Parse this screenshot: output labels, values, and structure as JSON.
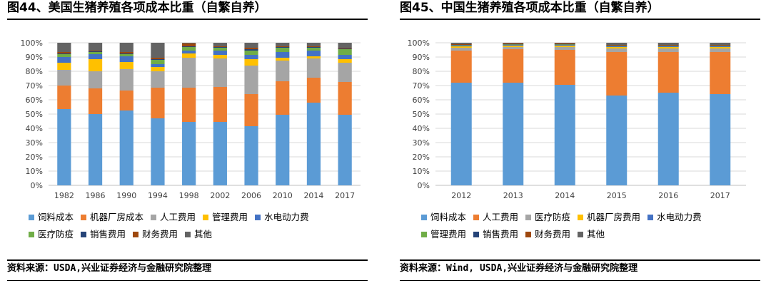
{
  "left": {
    "title": "图44、美国生猪养殖各项成本比重（自繁自养）",
    "source": "资料来源：USDA,兴业证券经济与金融研究院整理",
    "chart_data": {
      "type": "bar",
      "stacked": true,
      "categories": [
        "1982",
        "1986",
        "1990",
        "1994",
        "1998",
        "2002",
        "2006",
        "2010",
        "2014",
        "2017"
      ],
      "ylim": [
        0,
        100
      ],
      "yticks": [
        "0%",
        "10%",
        "20%",
        "30%",
        "40%",
        "50%",
        "60%",
        "70%",
        "80%",
        "90%",
        "100%"
      ],
      "grid": true,
      "legend_position": "bottom",
      "series": [
        {
          "name": "饲料成本",
          "color": "#5B9BD5",
          "values": [
            53.5,
            50,
            52.5,
            47,
            44.5,
            44.5,
            41.5,
            49.5,
            58,
            49.5
          ]
        },
        {
          "name": "机器厂房成本",
          "color": "#ED7D31",
          "values": [
            16.5,
            18,
            14,
            21.5,
            24,
            24.5,
            22.5,
            23.5,
            17.5,
            23
          ]
        },
        {
          "name": "人工费用",
          "color": "#A5A5A5",
          "values": [
            11,
            12,
            15,
            11.5,
            21,
            20,
            20,
            14.5,
            13.5,
            13.5
          ]
        },
        {
          "name": "管理费用",
          "color": "#FFC000",
          "values": [
            5,
            8.5,
            5,
            3,
            3,
            2.5,
            4.5,
            2,
            1.5,
            2.5
          ]
        },
        {
          "name": "水电动力费",
          "color": "#4472C4",
          "values": [
            4,
            3.5,
            4,
            2,
            2,
            3,
            3,
            4,
            4,
            3
          ]
        },
        {
          "name": "医疗防疫",
          "color": "#70AD47",
          "values": [
            2,
            1.5,
            1.5,
            3,
            2.5,
            2,
            3,
            3,
            2,
            4
          ]
        },
        {
          "name": "销售费用",
          "color": "#264478",
          "values": [
            0.5,
            0.5,
            0.5,
            0.5,
            0.5,
            0.5,
            1,
            0.5,
            0.5,
            0.5
          ]
        },
        {
          "name": "财务费用",
          "color": "#9E480E",
          "values": [
            1,
            0.5,
            1,
            1,
            2,
            0.5,
            1,
            0.5,
            0.5,
            0.5
          ]
        },
        {
          "name": "其他",
          "color": "#636363",
          "values": [
            6.5,
            5.5,
            6.5,
            10.5,
            0.5,
            2.5,
            3.5,
            2.5,
            2.5,
            3.5
          ]
        }
      ]
    }
  },
  "right": {
    "title": "图45、中国生猪养殖各项成本比重（自繁自养）",
    "source": "资料来源：Wind, USDA,兴业证券经济与金融研究院整理",
    "chart_data": {
      "type": "bar",
      "stacked": true,
      "categories": [
        "2012",
        "2013",
        "2014",
        "2015",
        "2016",
        "2017"
      ],
      "ylim": [
        0,
        100
      ],
      "yticks": [
        "0%",
        "10%",
        "20%",
        "30%",
        "40%",
        "50%",
        "60%",
        "70%",
        "80%",
        "90%",
        "100%"
      ],
      "grid": true,
      "legend_position": "bottom",
      "series": [
        {
          "name": "饲料成本",
          "color": "#5B9BD5",
          "values": [
            72,
            72,
            70.5,
            63,
            65,
            64
          ]
        },
        {
          "name": "人工费用",
          "color": "#ED7D31",
          "values": [
            22.5,
            23.5,
            24.5,
            30.5,
            28.5,
            29.5
          ]
        },
        {
          "name": "医疗防疫",
          "color": "#A5A5A5",
          "values": [
            2,
            1.5,
            2,
            2.5,
            2.5,
            2.5
          ]
        },
        {
          "name": "机器厂房费用",
          "color": "#FFC000",
          "values": [
            1,
            1,
            1,
            1,
            1,
            1
          ]
        },
        {
          "name": "水电动力费",
          "color": "#4472C4",
          "values": [
            0.5,
            0.5,
            0.5,
            0.5,
            0.5,
            0.5
          ]
        },
        {
          "name": "管理费用",
          "color": "#70AD47",
          "values": [
            0.3,
            0.3,
            0.3,
            0.3,
            0.3,
            0.3
          ]
        },
        {
          "name": "销售费用",
          "color": "#264478",
          "values": [
            0.2,
            0.2,
            0.2,
            0.2,
            0.2,
            0.2
          ]
        },
        {
          "name": "财务费用",
          "color": "#9E480E",
          "values": [
            0.5,
            0.5,
            0.5,
            0.5,
            0.5,
            0.5
          ]
        },
        {
          "name": "其他",
          "color": "#636363",
          "values": [
            1,
            0.5,
            0.5,
            1.5,
            1.5,
            1.5
          ]
        }
      ]
    }
  }
}
